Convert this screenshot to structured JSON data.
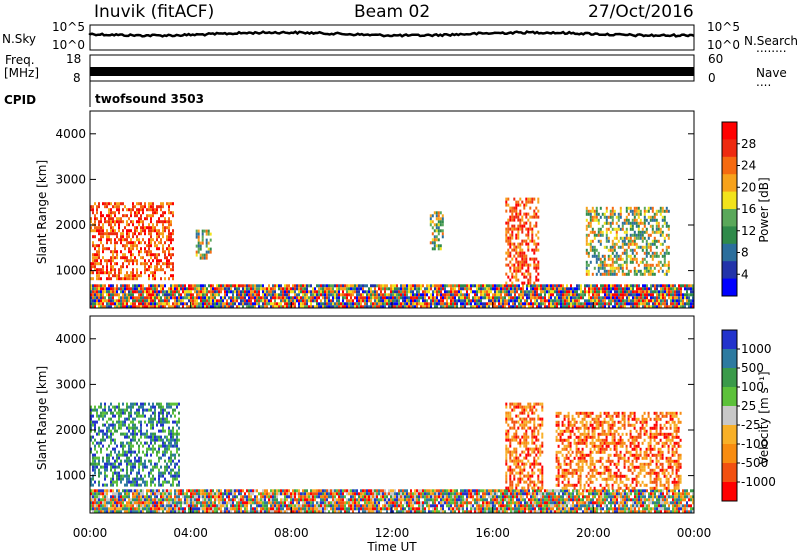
{
  "header": {
    "station": "Inuvik (fitACF)",
    "beam": "Beam 02",
    "date": "27/Oct/2016"
  },
  "strip_panels": {
    "nsky": {
      "left_label": "N.Sky",
      "left_ticks": [
        "10^5",
        "10^0"
      ],
      "right_ticks": [
        "10^5",
        "10^0"
      ],
      "right_label": "N.Search",
      "right_legend_line": "........"
    },
    "freq": {
      "left_label_line1": "Freq.",
      "left_label_line2": "[MHz]",
      "left_ticks": [
        "18",
        "8"
      ],
      "right_ticks": [
        "60",
        "0"
      ],
      "right_label": "Nave",
      "right_legend_line": "...."
    },
    "cpid": {
      "label": "CPID",
      "value": "twofsound 3503"
    }
  },
  "x_axis": {
    "label": "Time UT",
    "ticks": [
      "00:00",
      "04:00",
      "08:00",
      "12:00",
      "16:00",
      "20:00",
      "00:00"
    ]
  },
  "colors": {
    "power": [
      "#0000ff",
      "#2233aa",
      "#2b6e9c",
      "#2f8a4a",
      "#5aa85a",
      "#f2e31b",
      "#f7a21b",
      "#f56a10",
      "#ee2a10",
      "#ff0000"
    ],
    "velocity": [
      "#2233cc",
      "#2d7aa0",
      "#3a9a4a",
      "#5cc13a",
      "#c8c8c8",
      "#f8b028",
      "#f88c10",
      "#f25010",
      "#ff0000"
    ]
  },
  "chart_data": [
    {
      "type": "heatmap",
      "title": "Power",
      "ylabel": "Slant Range [km]",
      "xlabel": "Time UT",
      "ylim": [
        180,
        4500
      ],
      "xlim": [
        0,
        24
      ],
      "yticks": [
        "1000",
        "2000",
        "3000",
        "4000"
      ],
      "colorbar": {
        "label": "Power [dB]",
        "range": [
          0,
          32
        ],
        "tick_labels": [
          "4",
          "8",
          "12",
          "16",
          "20",
          "24",
          "28"
        ]
      },
      "echo_regions": [
        {
          "t_start": 0.0,
          "t_end": 3.3,
          "r_min": 800,
          "r_max": 2500,
          "level": "high"
        },
        {
          "t_start": 0.0,
          "t_end": 24.0,
          "r_min": 180,
          "r_max": 700,
          "level": "mixed"
        },
        {
          "t_start": 4.2,
          "t_end": 4.8,
          "r_min": 1300,
          "r_max": 1900,
          "level": "mid"
        },
        {
          "t_start": 13.5,
          "t_end": 14.0,
          "r_min": 1500,
          "r_max": 2300,
          "level": "mid"
        },
        {
          "t_start": 16.5,
          "t_end": 17.8,
          "r_min": 700,
          "r_max": 2600,
          "level": "high"
        },
        {
          "t_start": 19.7,
          "t_end": 23.0,
          "r_min": 900,
          "r_max": 2400,
          "level": "mid"
        }
      ]
    },
    {
      "type": "heatmap",
      "title": "Velocity",
      "ylabel": "Slant Range [km]",
      "xlabel": "Time UT",
      "ylim": [
        180,
        4500
      ],
      "xlim": [
        0,
        24
      ],
      "yticks": [
        "1000",
        "2000",
        "3000",
        "4000"
      ],
      "colorbar": {
        "label": "Velocity [m s⁻¹]",
        "range": [
          -1250,
          1250
        ],
        "tick_labels": [
          "1000",
          "500",
          "100",
          "25",
          "-25",
          "-100",
          "-500",
          "-1000"
        ]
      },
      "echo_regions": [
        {
          "t_start": 0.0,
          "t_end": 3.5,
          "r_min": 800,
          "r_max": 2600,
          "velocity": "towards"
        },
        {
          "t_start": 0.0,
          "t_end": 24.0,
          "r_min": 180,
          "r_max": 700,
          "velocity": "mixed"
        },
        {
          "t_start": 16.5,
          "t_end": 18.0,
          "r_min": 700,
          "r_max": 2600,
          "velocity": "away"
        },
        {
          "t_start": 18.5,
          "t_end": 23.5,
          "r_min": 700,
          "r_max": 2400,
          "velocity": "away"
        }
      ]
    }
  ]
}
